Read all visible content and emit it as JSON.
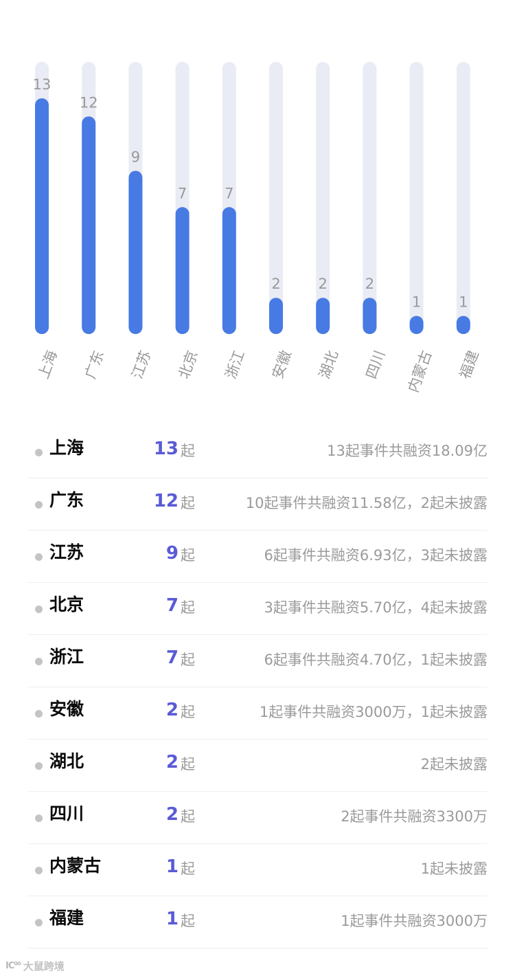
{
  "chart_data": {
    "type": "bar",
    "categories": [
      "上海",
      "广东",
      "江苏",
      "北京",
      "浙江",
      "安徽",
      "湖北",
      "四川",
      "内蒙古",
      "福建"
    ],
    "values": [
      13,
      12,
      9,
      7,
      7,
      2,
      2,
      2,
      1,
      1
    ],
    "value_labels": [
      "13",
      "12",
      "9",
      "7",
      "7",
      "2",
      "2",
      "2",
      "1",
      "1"
    ],
    "ylim": [
      0,
      15
    ],
    "title": "",
    "xlabel": "",
    "ylabel": "",
    "grid": false,
    "bar_color": "#477ae3",
    "track_color": "#e9ecf4",
    "label_color": "#999999"
  },
  "stats": {
    "unit": "起",
    "rows": [
      {
        "region": "上海",
        "count": "13",
        "desc": "13起事件共融资18.09亿"
      },
      {
        "region": "广东",
        "count": "12",
        "desc": "10起事件共融资11.58亿，2起未披露"
      },
      {
        "region": "江苏",
        "count": "9",
        "desc": "6起事件共融资6.93亿，3起未披露"
      },
      {
        "region": "北京",
        "count": "7",
        "desc": "3起事件共融资5.70亿，4起未披露"
      },
      {
        "region": "浙江",
        "count": "7",
        "desc": "6起事件共融资4.70亿，1起未披露"
      },
      {
        "region": "安徽",
        "count": "2",
        "desc": "1起事件共融资3000万，1起未披露"
      },
      {
        "region": "湖北",
        "count": "2",
        "desc": "2起未披露"
      },
      {
        "region": "四川",
        "count": "2",
        "desc": "2起事件共融资3300万"
      },
      {
        "region": "内蒙古",
        "count": "1",
        "desc": "1起未披露"
      },
      {
        "region": "福建",
        "count": "1",
        "desc": "1起事件共融资3000万"
      }
    ]
  },
  "watermark": {
    "logo": "IC⁰⁰",
    "text": "大鼠跨境"
  },
  "colors": {
    "count_accent": "#5a5bd6",
    "muted_text": "#9a9a9a",
    "dot": "#c4c4c4"
  }
}
